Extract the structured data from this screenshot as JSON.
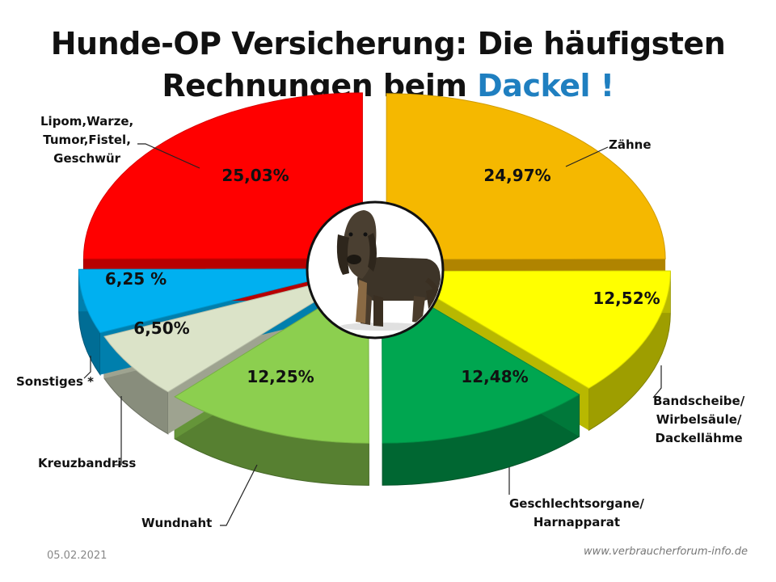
{
  "title": {
    "line1": "Hunde-OP Versicherung: Die häufigsten",
    "line2_main": "Rechnungen beim ",
    "line2_accent": "Dackel !"
  },
  "chart_data": {
    "type": "pie",
    "title": "Hunde-OP Versicherung: Die häufigsten Rechnungen beim Dackel !",
    "slices": [
      {
        "name": "Zähne",
        "value": 24.97,
        "label": "24,97%",
        "color": "#f5b800"
      },
      {
        "name": "Bandscheibe/\nWirbelsäule/\nDackellähme",
        "value": 12.52,
        "label": "12,52%",
        "color": "#ffff00"
      },
      {
        "name": "Geschlechtsorgane/\nHarnapparat",
        "value": 12.48,
        "label": "12,48%",
        "color": "#00a650"
      },
      {
        "name": "Wundnaht",
        "value": 12.25,
        "label": "12,25%",
        "color": "#8ccf4f"
      },
      {
        "name": "Kreuzbandriss",
        "value": 6.5,
        "label": "6,50%",
        "color": "#dbe3c8"
      },
      {
        "name": "Sonstiges *",
        "value": 6.25,
        "label": "6,25 %",
        "color": "#00b0f0"
      },
      {
        "name": "Lipom,Warze,\nTumor,Fistel,\nGeschwür",
        "value": 25.03,
        "label": "25,03%",
        "color": "#ff0000"
      }
    ]
  },
  "center_image": "dachshund-photo",
  "footer": {
    "date": "05.02.2021",
    "source": "www.verbraucherforum-info.de"
  }
}
